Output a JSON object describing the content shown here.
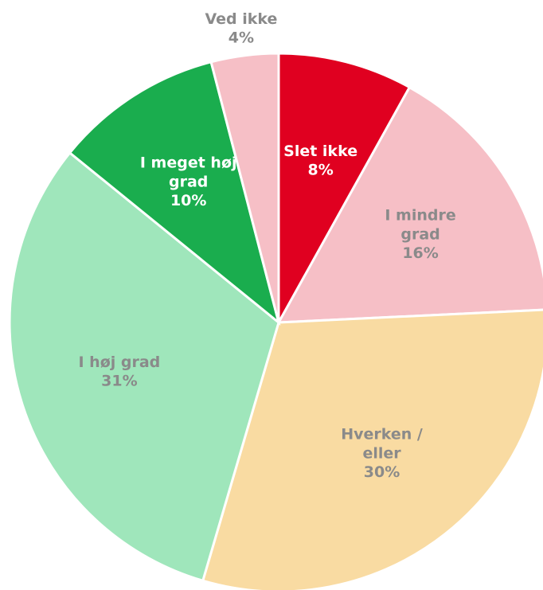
{
  "chart_data": {
    "type": "pie",
    "categories": [
      "Slet ikke",
      "I mindre grad",
      "Hverken / eller",
      "I høj grad",
      "I meget høj grad",
      "Ved ikke"
    ],
    "values": [
      8,
      16,
      30,
      31,
      10,
      4
    ],
    "value_labels": [
      "8%",
      "16%",
      "30%",
      "31%",
      "10%",
      "4%"
    ],
    "colors": [
      "#e00020",
      "#f6bfc6",
      "#f9dba2",
      "#9fe6bb",
      "#1aad4e",
      "#f6bfc6"
    ],
    "label_colors": [
      "#ffffff",
      "#8a8a8a",
      "#8a8a8a",
      "#8a8a8a",
      "#ffffff",
      "#8a8a8a"
    ]
  }
}
